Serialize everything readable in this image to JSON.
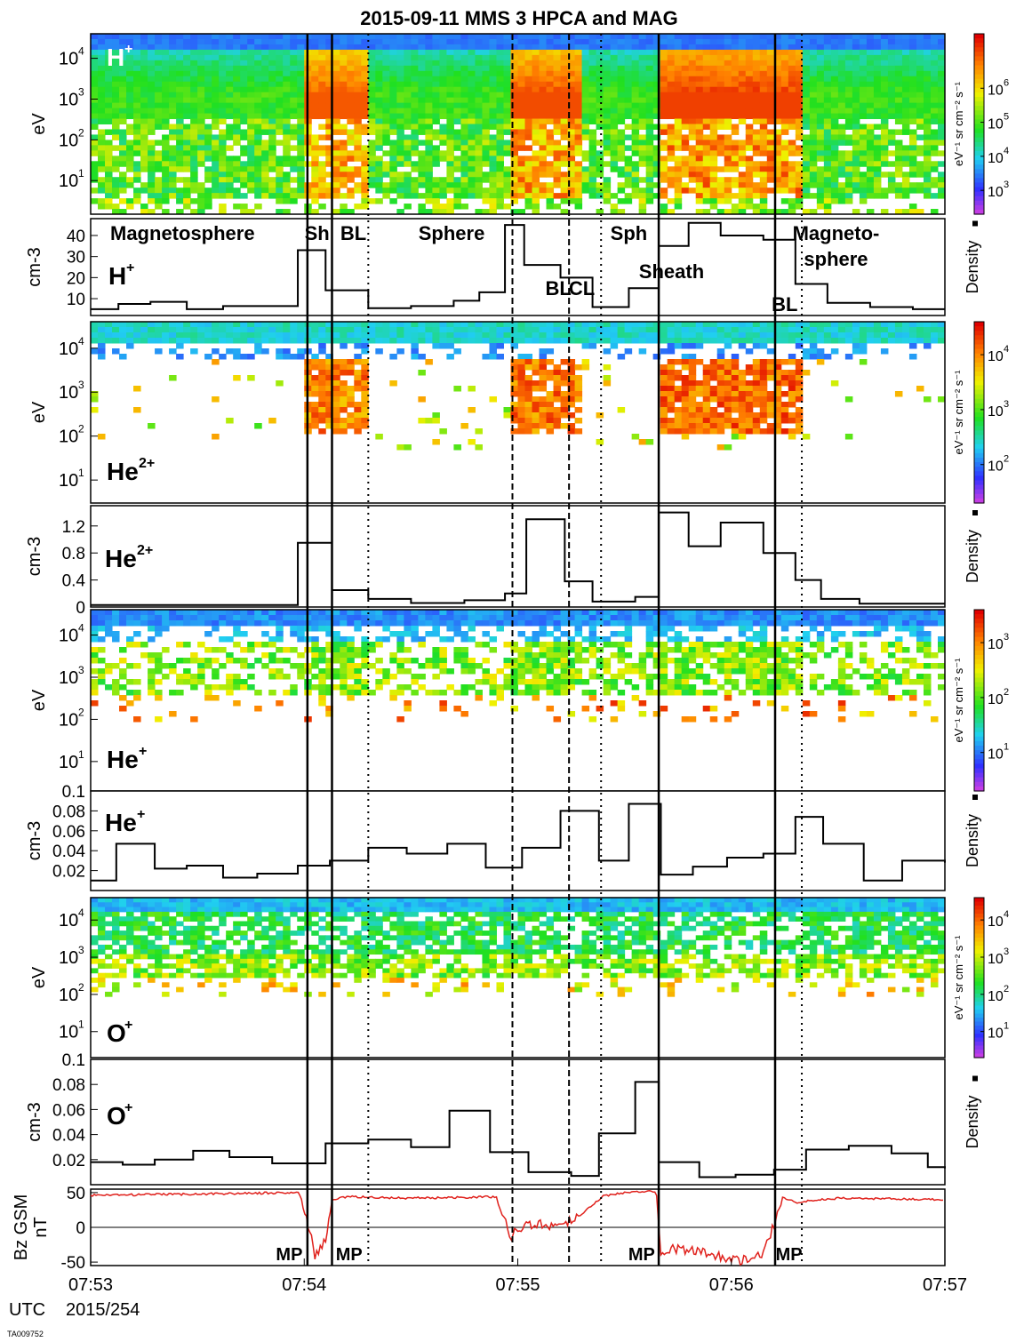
{
  "title": "2015-09-11 MMS 3 HPCA and MAG",
  "footer_id": "TA009752",
  "utc_label": "UTC",
  "date_label": "2015/254",
  "time_ticks": [
    "07:53",
    "07:54",
    "07:55",
    "07:56",
    "07:57"
  ],
  "regions": [
    {
      "text": "Magnetosphere",
      "t": 0.43
    },
    {
      "text": "Sh",
      "t": 1.06
    },
    {
      "text": "BL",
      "t": 1.23
    },
    {
      "text": "Sphere",
      "t": 1.69
    },
    {
      "text": "Sph",
      "t": 2.52
    },
    {
      "text": "Sheath",
      "t": 2.72
    },
    {
      "text": "Magneto-",
      "t": 3.49
    },
    {
      "text": "sphere",
      "t": 3.49
    },
    {
      "text": "BL",
      "t": 2.19
    },
    {
      "text": "CL",
      "t": 2.3
    },
    {
      "text": "BL",
      "t": 3.25
    }
  ],
  "boundaries": [
    {
      "t": 1.015,
      "style": "solid"
    },
    {
      "t": 1.13,
      "style": "solid"
    },
    {
      "t": 1.3,
      "style": "dotted"
    },
    {
      "t": 1.975,
      "style": "dashed"
    },
    {
      "t": 2.24,
      "style": "dashed"
    },
    {
      "t": 2.39,
      "style": "dotted"
    },
    {
      "t": 2.66,
      "style": "solid"
    },
    {
      "t": 3.205,
      "style": "solid"
    },
    {
      "t": 3.33,
      "style": "dotted"
    }
  ],
  "mp_labels": [
    {
      "text": "MP",
      "t": 0.93
    },
    {
      "text": "MP",
      "t": 1.21
    },
    {
      "text": "MP",
      "t": 2.58
    },
    {
      "text": "MP",
      "t": 3.27
    }
  ],
  "spectrograms": [
    {
      "species": "H",
      "charge": "+",
      "ylabel": "eV",
      "ticks": [
        "10",
        "10",
        "10",
        "10"
      ],
      "tick_exp": [
        "1",
        "2",
        "3",
        "4"
      ],
      "cbar_ticks": [
        "10",
        "10",
        "10",
        "10",
        "10"
      ],
      "cbar_exp": [
        "3",
        "4",
        "5",
        "6",
        ""
      ],
      "cbar_label": "eV⁻¹ sr cm⁻² s⁻¹"
    },
    {
      "species": "He",
      "charge": "2+",
      "ylabel": "eV",
      "ticks": [
        "10",
        "10",
        "10",
        "10"
      ],
      "tick_exp": [
        "1",
        "2",
        "3",
        "4"
      ],
      "cbar_ticks": [
        "10",
        "10",
        "10"
      ],
      "cbar_exp": [
        "2",
        "3",
        "4"
      ],
      "cbar_label": "eV⁻¹ sr cm⁻² s⁻¹"
    },
    {
      "species": "He",
      "charge": "+",
      "ylabel": "eV",
      "ticks": [
        "10",
        "10",
        "10",
        "10"
      ],
      "tick_exp": [
        "1",
        "2",
        "3",
        "4"
      ],
      "cbar_ticks": [
        "10",
        "10",
        "10"
      ],
      "cbar_exp": [
        "1",
        "2",
        "3"
      ],
      "cbar_label": "eV⁻¹ sr cm⁻² s⁻¹"
    },
    {
      "species": "O",
      "charge": "+",
      "ylabel": "eV",
      "ticks": [
        "10",
        "10",
        "10",
        "10"
      ],
      "tick_exp": [
        "1",
        "2",
        "3",
        "4"
      ],
      "cbar_ticks": [
        "10",
        "10",
        "10",
        "10"
      ],
      "cbar_exp": [
        "1",
        "2",
        "3",
        "4"
      ],
      "cbar_label": "eV⁻¹ sr cm⁻² s⁻¹"
    }
  ],
  "chart_data": [
    {
      "type": "heatmap",
      "panel": "H+ spectrogram",
      "x_unit": "minutes after 07:53",
      "ylabel": "eV",
      "ylim": [
        1.5,
        40000
      ],
      "log_y": true,
      "colorbar_range": [
        300,
        3000000
      ],
      "colorbar_label": "eV-1 sr cm-2 s-1"
    },
    {
      "type": "line",
      "panel": "H+ density",
      "ylabel": "cm-3",
      "ylim": [
        2,
        48
      ],
      "yticks": [
        "10",
        "20",
        "30",
        "40"
      ],
      "legend": "Density",
      "x": [
        0,
        0.13,
        0.28,
        0.45,
        0.62,
        0.78,
        0.97,
        1.1,
        1.3,
        1.5,
        1.7,
        1.82,
        1.94,
        2.03,
        2.2,
        2.35,
        2.52,
        2.66,
        2.8,
        2.95,
        3.15,
        3.3,
        3.45,
        3.65,
        3.85,
        4.0
      ],
      "y": [
        5,
        7.5,
        8.5,
        5,
        6.5,
        6.5,
        33,
        14,
        5.5,
        6.5,
        9,
        13,
        45,
        26,
        20,
        6,
        15,
        35,
        46,
        40,
        38,
        17,
        8,
        6,
        5,
        5
      ],
      "annotations": [
        "Magnetosphere",
        "Sh",
        "BL",
        "Sphere",
        "Sph",
        "Sheath",
        "Magneto-",
        "sphere",
        "BL",
        "CL",
        "BL"
      ]
    },
    {
      "type": "heatmap",
      "panel": "He2+ spectrogram",
      "ylabel": "eV",
      "ylim": [
        3,
        40000
      ],
      "log_y": true,
      "colorbar_range": [
        30,
        60000
      ],
      "colorbar_label": "eV-1 sr cm-2 s-1"
    },
    {
      "type": "line",
      "panel": "He2+ density",
      "ylabel": "cm-3",
      "ylim": [
        0,
        1.5
      ],
      "yticks": [
        "0",
        "0.4",
        "0.8",
        "1.2"
      ],
      "legend": "Density",
      "x": [
        0,
        0.97,
        1.13,
        1.3,
        1.5,
        1.75,
        1.94,
        2.04,
        2.22,
        2.35,
        2.55,
        2.66,
        2.8,
        2.95,
        3.15,
        3.3,
        3.42,
        3.6,
        4.0
      ],
      "y": [
        0.03,
        0.95,
        0.25,
        0.12,
        0.06,
        0.1,
        0.2,
        1.3,
        0.38,
        0.08,
        0.15,
        1.4,
        0.9,
        1.25,
        0.8,
        0.4,
        0.12,
        0.05,
        0.05
      ]
    },
    {
      "type": "heatmap",
      "panel": "He+ spectrogram",
      "ylabel": "eV",
      "ylim": [
        2,
        40000
      ],
      "log_y": true,
      "colorbar_range": [
        2,
        5000
      ],
      "colorbar_label": "eV-1 sr cm-2 s-1"
    },
    {
      "type": "line",
      "panel": "He+ density",
      "ylabel": "cm-3",
      "ylim": [
        0,
        0.1
      ],
      "yticks": [
        "0.02",
        "0.04",
        "0.06",
        "0.08",
        "0.1"
      ],
      "legend": "Density",
      "x": [
        0,
        0.12,
        0.3,
        0.45,
        0.62,
        0.78,
        0.97,
        1.12,
        1.3,
        1.48,
        1.67,
        1.85,
        2.02,
        2.2,
        2.38,
        2.52,
        2.67,
        2.82,
        2.98,
        3.15,
        3.3,
        3.43,
        3.62,
        3.8,
        4.0
      ],
      "y": [
        0.01,
        0.047,
        0.022,
        0.025,
        0.013,
        0.017,
        0.025,
        0.03,
        0.043,
        0.037,
        0.047,
        0.023,
        0.043,
        0.08,
        0.03,
        0.087,
        0.016,
        0.024,
        0.033,
        0.037,
        0.074,
        0.047,
        0.01,
        0.03,
        0.028
      ]
    },
    {
      "type": "heatmap",
      "panel": "O+ spectrogram",
      "ylabel": "eV",
      "ylim": [
        2,
        40000
      ],
      "log_y": true,
      "colorbar_range": [
        2,
        15000
      ],
      "colorbar_label": "eV-1 sr cm-2 s-1"
    },
    {
      "type": "line",
      "panel": "O+ density",
      "ylabel": "cm-3",
      "ylim": [
        0,
        0.1
      ],
      "yticks": [
        "0.02",
        "0.04",
        "0.06",
        "0.08",
        "0.1"
      ],
      "legend": "Density",
      "x": [
        0,
        0.15,
        0.3,
        0.48,
        0.65,
        0.85,
        1.1,
        1.3,
        1.5,
        1.68,
        1.87,
        2.05,
        2.25,
        2.38,
        2.55,
        2.66,
        2.85,
        3.02,
        3.2,
        3.35,
        3.55,
        3.75,
        3.92,
        4.0
      ],
      "y": [
        0.018,
        0.016,
        0.02,
        0.027,
        0.022,
        0.017,
        0.033,
        0.036,
        0.03,
        0.059,
        0.026,
        0.01,
        0.007,
        0.041,
        0.082,
        0.018,
        0.006,
        0.008,
        0.012,
        0.028,
        0.031,
        0.025,
        0.014,
        0.013
      ]
    },
    {
      "type": "line",
      "panel": "MAG Bz",
      "ylabel": "Bz GSM",
      "yunit": "nT",
      "ylim": [
        -55,
        55
      ],
      "yticks": [
        "-50",
        "0",
        "50"
      ],
      "color": "#e0211c",
      "x": [
        0,
        0.5,
        0.98,
        1.01,
        1.05,
        1.1,
        1.13,
        1.2,
        1.5,
        1.9,
        1.97,
        2.0,
        2.08,
        2.2,
        2.3,
        2.4,
        2.55,
        2.65,
        2.67,
        2.75,
        2.9,
        3.05,
        3.15,
        3.2,
        3.24,
        3.3,
        3.5,
        4.0
      ],
      "y": [
        46,
        48,
        50,
        15,
        -40,
        -20,
        40,
        44,
        42,
        44,
        -15,
        0,
        5,
        2,
        20,
        45,
        52,
        52,
        -35,
        -30,
        -38,
        -48,
        -40,
        5,
        44,
        36,
        42,
        40
      ]
    }
  ]
}
